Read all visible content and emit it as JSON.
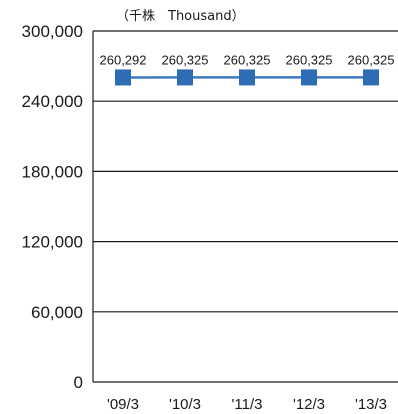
{
  "unit_label": "（千株　Thousand）",
  "chart_data": {
    "type": "line",
    "categories": [
      "'09/3",
      "'10/3",
      "'11/3",
      "'12/3",
      "'13/3"
    ],
    "series": [
      {
        "values": [
          260292,
          260325,
          260325,
          260325,
          260325
        ]
      }
    ],
    "data_labels": [
      "260,292",
      "260,325",
      "260,325",
      "260,325",
      "260,325"
    ],
    "ylim": [
      0,
      300000
    ],
    "yticks": [
      0,
      60000,
      120000,
      180000,
      240000,
      300000
    ],
    "ytick_labels": [
      "0",
      "60,000",
      "120,000",
      "180,000",
      "240,000",
      "300,000"
    ],
    "grid": true,
    "colors": {
      "line": "#3d7cc4",
      "marker": "#2e6db5",
      "grid": "#1a1a1a"
    }
  }
}
